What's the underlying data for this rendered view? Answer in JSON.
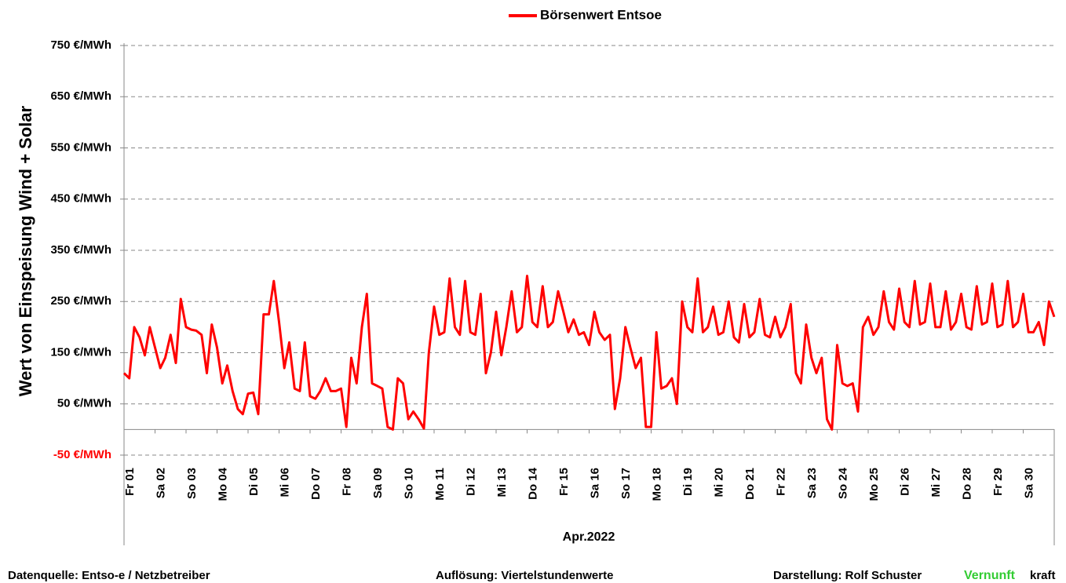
{
  "chart_data": {
    "type": "line",
    "y_label": "Wert von Einspeisung Wind + Solar",
    "x_label": "Apr.2022",
    "xlim": [
      0,
      30
    ],
    "xticks": [
      {
        "value": 0,
        "label": "Fr 01"
      },
      {
        "value": 1,
        "label": "Sa 02"
      },
      {
        "value": 2,
        "label": "So 03"
      },
      {
        "value": 3,
        "label": "Mo 04"
      },
      {
        "value": 4,
        "label": "Di 05"
      },
      {
        "value": 5,
        "label": "Mi 06"
      },
      {
        "value": 6,
        "label": "Do 07"
      },
      {
        "value": 7,
        "label": "Fr 08"
      },
      {
        "value": 8,
        "label": "Sa 09"
      },
      {
        "value": 9,
        "label": "So 10"
      },
      {
        "value": 10,
        "label": "Mo 11"
      },
      {
        "value": 11,
        "label": "Di 12"
      },
      {
        "value": 12,
        "label": "Mi 13"
      },
      {
        "value": 13,
        "label": "Do 14"
      },
      {
        "value": 14,
        "label": "Fr 15"
      },
      {
        "value": 15,
        "label": "Sa 16"
      },
      {
        "value": 16,
        "label": "So 17"
      },
      {
        "value": 17,
        "label": "Mo 18"
      },
      {
        "value": 18,
        "label": "Di 19"
      },
      {
        "value": 19,
        "label": "Mi 20"
      },
      {
        "value": 20,
        "label": "Do 21"
      },
      {
        "value": 21,
        "label": "Fr 22"
      },
      {
        "value": 22,
        "label": "Sa 23"
      },
      {
        "value": 23,
        "label": "So 24"
      },
      {
        "value": 24,
        "label": "Mo 25"
      },
      {
        "value": 25,
        "label": "Di 26"
      },
      {
        "value": 26,
        "label": "Mi 27"
      },
      {
        "value": 27,
        "label": "Do 28"
      },
      {
        "value": 28,
        "label": "Fr 29"
      },
      {
        "value": 29,
        "label": "Sa 30"
      }
    ],
    "ylim": [
      -50,
      750
    ],
    "yticks": [
      {
        "value": -50,
        "label": "-50 €/MWh"
      },
      {
        "value": 50,
        "label": "50 €/MWh"
      },
      {
        "value": 150,
        "label": "150 €/MWh"
      },
      {
        "value": 250,
        "label": "250 €/MWh"
      },
      {
        "value": 350,
        "label": "350 €/MWh"
      },
      {
        "value": 450,
        "label": "450 €/MWh"
      },
      {
        "value": 550,
        "label": "550 €/MWh"
      },
      {
        "value": 650,
        "label": "650 €/MWh"
      },
      {
        "value": 750,
        "label": "750 €/MWh"
      }
    ],
    "negative_tick_color": "#ff0000",
    "grid": true,
    "legend": "top",
    "x": [
      0,
      0.17,
      0.33,
      0.5,
      0.67,
      0.83,
      1,
      1.17,
      1.33,
      1.5,
      1.67,
      1.83,
      2,
      2.17,
      2.33,
      2.5,
      2.67,
      2.83,
      3,
      3.17,
      3.33,
      3.5,
      3.67,
      3.83,
      4,
      4.17,
      4.33,
      4.5,
      4.67,
      4.83,
      5,
      5.17,
      5.33,
      5.5,
      5.67,
      5.83,
      6,
      6.17,
      6.33,
      6.5,
      6.67,
      6.83,
      7,
      7.17,
      7.33,
      7.5,
      7.67,
      7.83,
      8,
      8.17,
      8.33,
      8.5,
      8.67,
      8.83,
      9,
      9.17,
      9.33,
      9.5,
      9.67,
      9.83,
      10,
      10.17,
      10.33,
      10.5,
      10.67,
      10.83,
      11,
      11.17,
      11.33,
      11.5,
      11.67,
      11.83,
      12,
      12.17,
      12.33,
      12.5,
      12.67,
      12.83,
      13,
      13.17,
      13.33,
      13.5,
      13.67,
      13.83,
      14,
      14.17,
      14.33,
      14.5,
      14.67,
      14.83,
      15,
      15.17,
      15.33,
      15.5,
      15.67,
      15.83,
      16,
      16.17,
      16.33,
      16.5,
      16.67,
      16.83,
      17,
      17.17,
      17.33,
      17.5,
      17.67,
      17.83,
      18,
      18.17,
      18.33,
      18.5,
      18.67,
      18.83,
      19,
      19.17,
      19.33,
      19.5,
      19.67,
      19.83,
      20,
      20.17,
      20.33,
      20.5,
      20.67,
      20.83,
      21,
      21.17,
      21.33,
      21.5,
      21.67,
      21.83,
      22,
      22.17,
      22.33,
      22.5,
      22.67,
      22.83,
      23,
      23.17,
      23.33,
      23.5,
      23.67,
      23.83,
      24,
      24.17,
      24.33,
      24.5,
      24.67,
      24.83,
      25,
      25.17,
      25.33,
      25.5,
      25.67,
      25.83,
      26,
      26.17,
      26.33,
      26.5,
      26.67,
      26.83,
      27,
      27.17,
      27.33,
      27.5,
      27.67,
      27.83,
      28,
      28.17,
      28.33,
      28.5,
      28.67,
      28.83,
      29,
      29.17,
      29.33,
      29.5,
      29.67,
      29.83,
      30
    ],
    "series": [
      {
        "name": "Börsenwert Entsoe",
        "color": "#ff0000",
        "values": [
          110,
          100,
          200,
          180,
          145,
          200,
          160,
          120,
          140,
          185,
          130,
          255,
          200,
          195,
          193,
          185,
          110,
          205,
          160,
          90,
          125,
          75,
          40,
          30,
          70,
          72,
          30,
          225,
          225,
          290,
          210,
          120,
          170,
          80,
          75,
          170,
          65,
          60,
          75,
          100,
          75,
          75,
          80,
          5,
          140,
          90,
          200,
          265,
          90,
          85,
          80,
          5,
          0,
          100,
          90,
          20,
          35,
          20,
          2,
          150,
          240,
          185,
          190,
          295,
          200,
          185,
          290,
          190,
          185,
          265,
          110,
          150,
          230,
          145,
          200,
          270,
          190,
          200,
          300,
          210,
          200,
          280,
          200,
          210,
          270,
          230,
          190,
          215,
          185,
          190,
          165,
          230,
          190,
          175,
          185,
          40,
          100,
          200,
          160,
          120,
          140,
          5,
          5,
          190,
          80,
          85,
          100,
          50,
          250,
          200,
          190,
          295,
          190,
          200,
          240,
          185,
          190,
          250,
          180,
          170,
          245,
          180,
          190,
          255,
          185,
          180,
          220,
          180,
          200,
          245,
          110,
          90,
          205,
          140,
          110,
          140,
          20,
          0,
          165,
          90,
          85,
          90,
          35,
          200,
          220,
          185,
          200,
          270,
          210,
          195,
          275,
          210,
          200,
          290,
          205,
          210,
          285,
          200,
          200,
          270,
          195,
          210,
          265,
          200,
          195,
          280,
          205,
          210,
          285,
          200,
          205,
          290,
          200,
          210,
          265,
          190,
          190,
          210,
          165,
          250,
          220
        ]
      }
    ]
  },
  "footer": {
    "source": "Datenquelle:  Entso-e  / Netzbetreiber",
    "resolution": "Auflösung:  Viertelstundenwerte",
    "author": "Darstellung:  Rolf Schuster",
    "brand_1": "Vernunft",
    "brand_2": "kraft"
  }
}
